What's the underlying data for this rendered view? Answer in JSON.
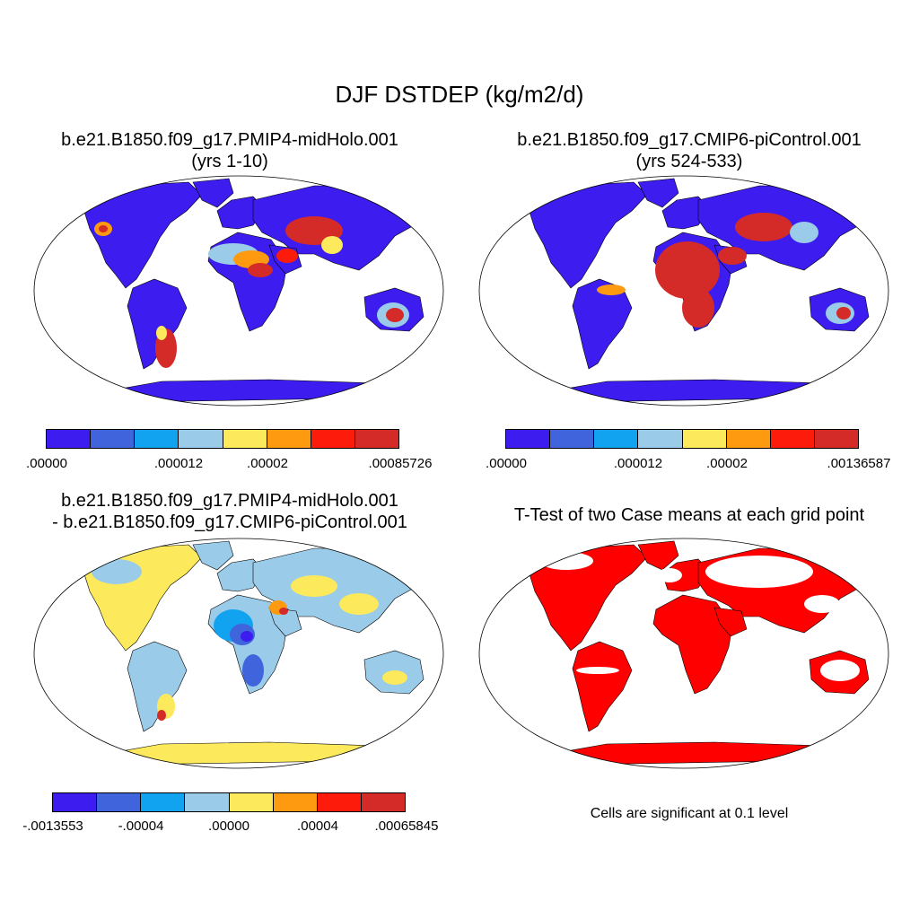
{
  "figure_title": "DJF DSTDEP (kg/m2/d)",
  "panels": [
    {
      "id": "mid-holocene",
      "title_line1": "b.e21.B1850.f09_g17.PMIP4-midHolo.001",
      "title_line2": "(yrs 1-10)",
      "colorbar": {
        "colors": [
          "#3d1cf0",
          "#3f64dc",
          "#12a3f0",
          "#9acbe8",
          "#fcea5c",
          "#fd9a0f",
          "#fd1c0c",
          "#d42b29"
        ],
        "labels": [
          ".00000",
          ".000012",
          ".00002",
          ".00085726"
        ]
      }
    },
    {
      "id": "pi-control",
      "title_line1": "b.e21.B1850.f09_g17.CMIP6-piControl.001",
      "title_line2": "(yrs 524-533)",
      "colorbar": {
        "colors": [
          "#3d1cf0",
          "#3f64dc",
          "#12a3f0",
          "#9acbe8",
          "#fcea5c",
          "#fd9a0f",
          "#fd1c0c",
          "#d42b29"
        ],
        "labels": [
          ".00000",
          ".000012",
          ".00002",
          ".00136587"
        ]
      }
    },
    {
      "id": "difference",
      "title_line1": "b.e21.B1850.f09_g17.PMIP4-midHolo.001",
      "title_line2": "- b.e21.B1850.f09_g17.CMIP6-piControl.001",
      "colorbar": {
        "colors": [
          "#3d1cf0",
          "#3f64dc",
          "#12a3f0",
          "#9acbe8",
          "#fcea5c",
          "#fd9a0f",
          "#fd1c0c",
          "#d42b29"
        ],
        "labels": [
          "-.0013553",
          "-.00004",
          ".00000",
          ".00004",
          ".00065845"
        ]
      }
    },
    {
      "id": "t-test",
      "title_line1": "T-Test of two Case means at each grid point",
      "note": "Cells are significant at 0.1 level",
      "sig_color": "#ff0000"
    }
  ]
}
